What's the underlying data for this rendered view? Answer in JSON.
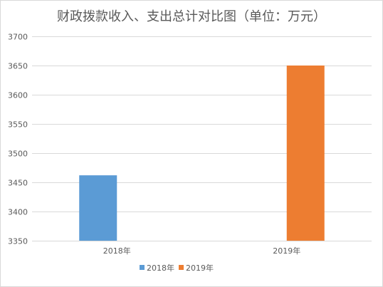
{
  "chart_data": {
    "type": "bar",
    "title": "财政拨款收入、支出总计对比图（单位：万元）",
    "categories": [
      "2018年",
      "2019年"
    ],
    "series": [
      {
        "name": "2018年",
        "color": "#5b9bd5",
        "values": [
          3462,
          null
        ]
      },
      {
        "name": "2019年",
        "color": "#ed7d31",
        "values": [
          null,
          3650
        ]
      }
    ],
    "ylim": [
      3350,
      3700
    ],
    "yticks": [
      3350,
      3400,
      3450,
      3500,
      3550,
      3600,
      3650,
      3700
    ],
    "grid": true,
    "legend_position": "bottom"
  }
}
